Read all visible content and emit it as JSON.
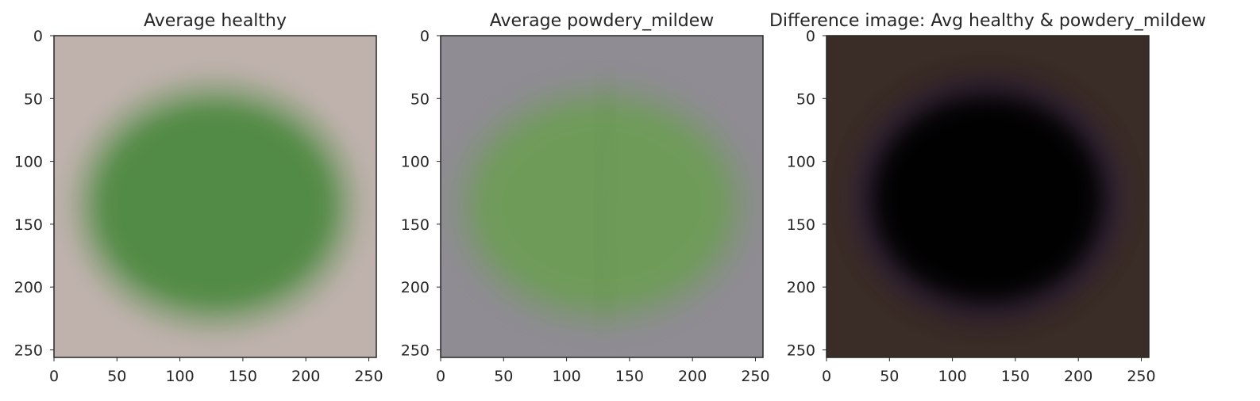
{
  "chart_data": [
    {
      "type": "image",
      "title": "Average healthy",
      "xlabel": "",
      "ylabel": "",
      "xlim": [
        0,
        256
      ],
      "ylim": [
        256,
        0
      ],
      "xticks": [
        0,
        50,
        100,
        150,
        200,
        250
      ],
      "yticks": [
        0,
        50,
        100,
        150,
        200,
        250
      ],
      "grid": false,
      "image": {
        "background": "#bfb2ad",
        "blob_color": "#4f8a43",
        "blob_center": [
          128,
          135
        ],
        "blob_radius": [
          105,
          90
        ],
        "description": "Average leaf image: green elliptical blob over pinkish-grey background"
      }
    },
    {
      "type": "image",
      "title": "Average powdery_mildew",
      "xlabel": "",
      "ylabel": "",
      "xlim": [
        0,
        256
      ],
      "ylim": [
        256,
        0
      ],
      "xticks": [
        0,
        50,
        100,
        150,
        200,
        250
      ],
      "yticks": [
        0,
        50,
        100,
        150,
        200,
        250
      ],
      "grid": false,
      "image": {
        "background": "#8f8c93",
        "blob_color": "#6e9c58",
        "blob_center": [
          128,
          135
        ],
        "blob_radius": [
          110,
          88
        ],
        "description": "Average leaf image: pale green ellipse with central vein over grey background"
      }
    },
    {
      "type": "image",
      "title": "Difference image: Avg healthy & powdery_mildew",
      "xlabel": "",
      "ylabel": "",
      "xlim": [
        0,
        256
      ],
      "ylim": [
        256,
        0
      ],
      "xticks": [
        0,
        50,
        100,
        150,
        200,
        250
      ],
      "yticks": [
        0,
        50,
        100,
        150,
        200,
        250
      ],
      "grid": false,
      "image": {
        "background": "#3a2c26",
        "blob_color": "#050305",
        "ring_color": "#5a3c6e",
        "blob_center": [
          128,
          130
        ],
        "blob_radius": [
          100,
          90
        ],
        "description": "Difference image: dark brown background, black ellipse with faint purple rim"
      }
    }
  ]
}
